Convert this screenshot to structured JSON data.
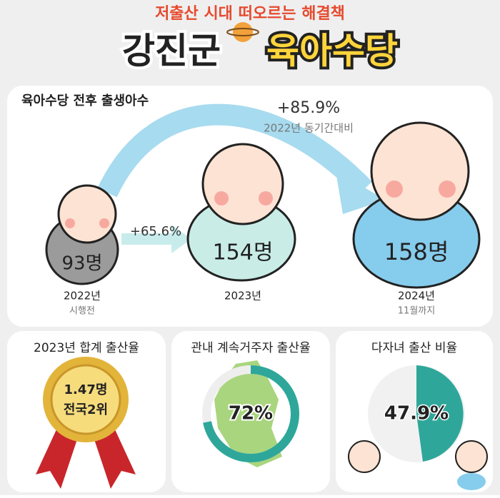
{
  "header": {
    "kicker": "저출산 시대 떠오르는 해결책",
    "title_part1": "강진군",
    "title_part2": "육아수당"
  },
  "births": {
    "title": "육아수당 전후 출생아수",
    "items": [
      {
        "count": "93명",
        "year": "2022년",
        "note": "시행전"
      },
      {
        "count": "154명",
        "year": "2023년"
      },
      {
        "count": "158명",
        "year": "2024년",
        "note": "11월까지"
      }
    ],
    "growth_2023": "+65.6%",
    "growth_2024": "+85.9%",
    "growth_2024_note": "2022년 동기간대비"
  },
  "panels": [
    {
      "title": "2023년 합계 출산율",
      "lines": [
        "1.47명",
        "전국2위"
      ]
    },
    {
      "title": "관내 계속거주자 출산율",
      "value": "72%"
    },
    {
      "title": "다자녀 출산 비율",
      "value": "47.9%"
    }
  ]
}
